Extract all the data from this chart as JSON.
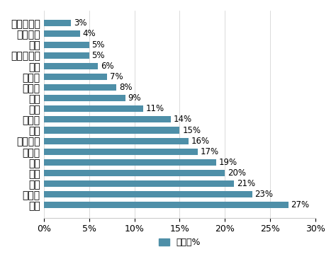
{
  "categories": [
    "日本",
    "意大利",
    "德国",
    "法国",
    "英国",
    "加拿大",
    "奥大利亚",
    "美国",
    "俄罗斯",
    "中国",
    "巴西",
    "土耳其",
    "墨西哥",
    "印度",
    "印度尼西亚",
    "南非",
    "巴基斯坦",
    "沙特阿拉伯"
  ],
  "values": [
    27,
    23,
    21,
    20,
    19,
    17,
    16,
    15,
    14,
    11,
    9,
    8,
    7,
    6,
    5,
    5,
    4,
    3
  ],
  "bar_color": "#4e8fa8",
  "xlabel": "老龄化%",
  "xlim": [
    0,
    30
  ],
  "xticks": [
    0,
    5,
    10,
    15,
    20,
    25,
    30
  ],
  "legend_label": "老龄化%",
  "background_color": "#ffffff",
  "grid_color": "#cccccc",
  "label_fontsize": 9,
  "value_fontsize": 8.5,
  "title_fontsize": 9
}
